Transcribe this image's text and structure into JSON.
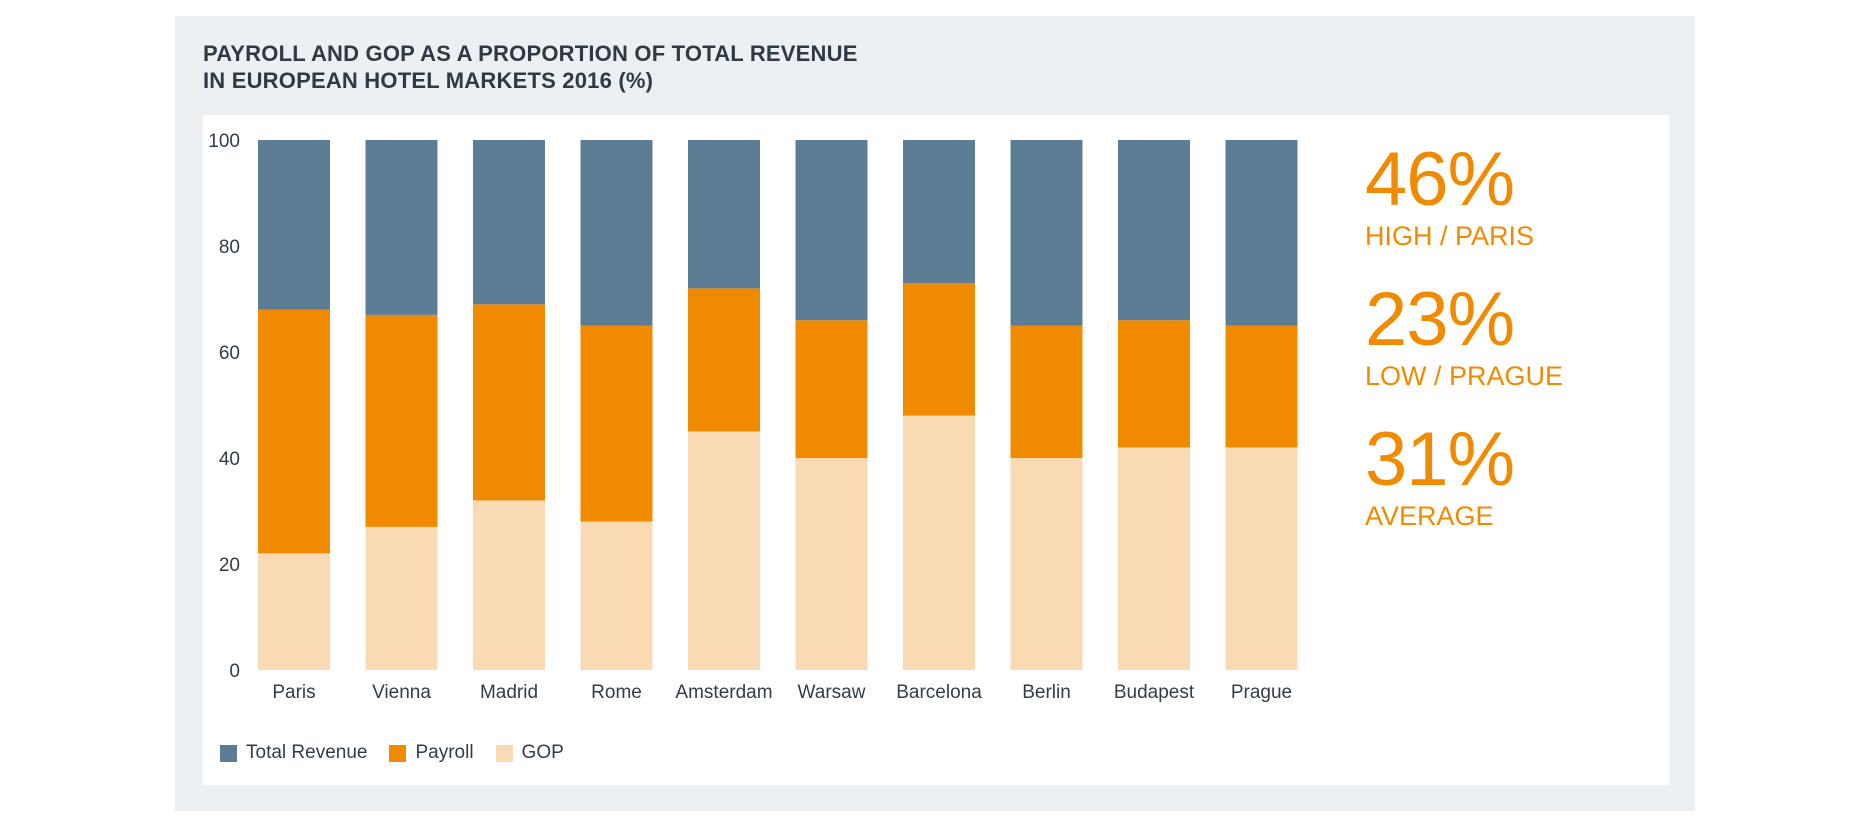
{
  "title_line1": "PAYROLL AND GOP AS A PROPORTION OF TOTAL REVENUE",
  "title_line2": "IN EUROPEAN HOTEL MARKETS 2016 (%)",
  "colors": {
    "panel_bg": "#edf0f3",
    "total_revenue": "#5d7d94",
    "payroll": "#f08a00",
    "gop": "#f9dab3",
    "accent": "#f08a00",
    "text": "#333d46"
  },
  "stats": [
    {
      "value": "46%",
      "label": "HIGH / PARIS"
    },
    {
      "value": "23%",
      "label": "LOW / PRAGUE"
    },
    {
      "value": "31%",
      "label": "AVERAGE"
    }
  ],
  "legend": [
    {
      "label": "Total Revenue",
      "color": "#5d7d94"
    },
    {
      "label": "Payroll",
      "color": "#f08a00"
    },
    {
      "label": "GOP",
      "color": "#f9dab3"
    }
  ],
  "chart_data": {
    "type": "bar",
    "stacked": true,
    "title": "PAYROLL AND GOP AS A PROPORTION OF TOTAL REVENUE IN EUROPEAN HOTEL MARKETS 2016 (%)",
    "categories": [
      "Paris",
      "Vienna",
      "Madrid",
      "Rome",
      "Amsterdam",
      "Warsaw",
      "Barcelona",
      "Berlin",
      "Budapest",
      "Prague"
    ],
    "series": [
      {
        "name": "GOP",
        "values": [
          22,
          27,
          32,
          28,
          45,
          40,
          48,
          40,
          42,
          42
        ]
      },
      {
        "name": "Payroll",
        "values": [
          46,
          40,
          37,
          37,
          27,
          26,
          25,
          25,
          24,
          23
        ]
      },
      {
        "name": "Total Revenue",
        "values": [
          32,
          33,
          31,
          35,
          28,
          34,
          27,
          35,
          34,
          35
        ]
      }
    ],
    "ylim": [
      0,
      100
    ],
    "yticks": [
      0,
      20,
      40,
      60,
      80,
      100
    ],
    "grid": false,
    "legend_position": "bottom-left"
  }
}
